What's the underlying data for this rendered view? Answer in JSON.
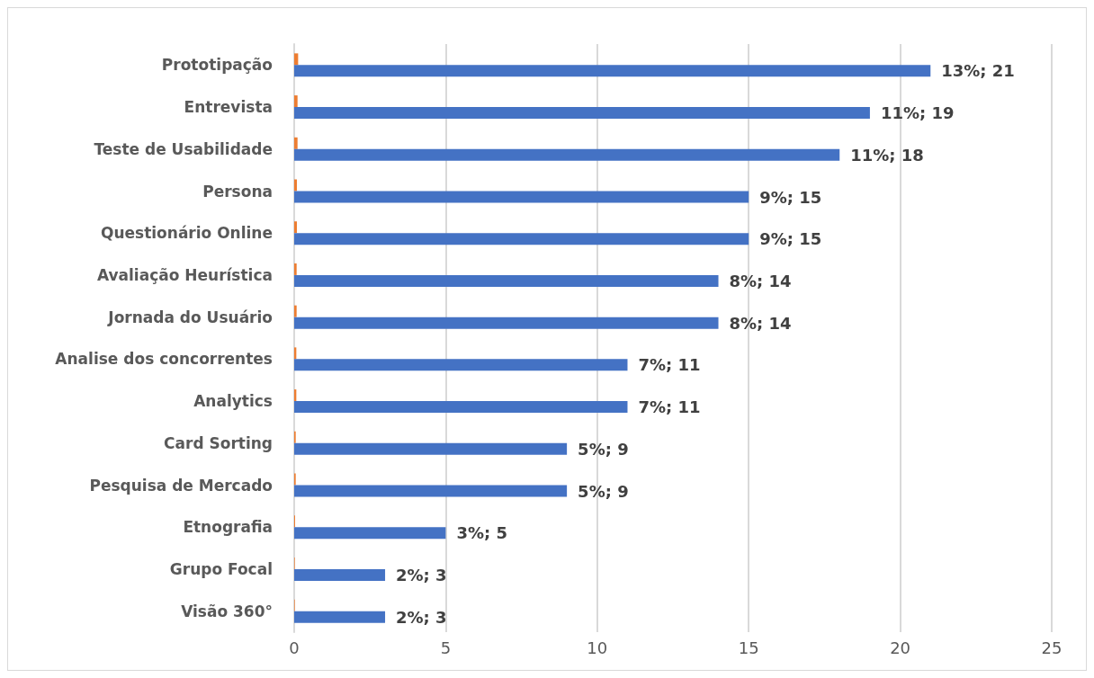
{
  "chart_data": {
    "type": "bar",
    "orientation": "horizontal",
    "categories": [
      "Prototipação",
      "Entrevista",
      "Teste de Usabilidade",
      "Persona",
      "Questionário Online",
      "Avaliação Heurística",
      "Jornada do Usuário",
      "Analise dos concorrentes",
      "Analytics",
      "Card Sorting",
      "Pesquisa de Mercado",
      "Etnografia",
      "Grupo Focal",
      "Visão 360°"
    ],
    "series": [
      {
        "color": "#4472c4",
        "values": [
          21,
          19,
          18,
          15,
          15,
          14,
          14,
          11,
          11,
          9,
          9,
          5,
          3,
          3
        ],
        "value_labels": [
          "13%; 21",
          "11%; 19",
          "11%; 18",
          "9%; 15",
          "9%; 15",
          "8%; 14",
          "8%; 14",
          "7%; 11",
          "7%; 11",
          "5%; 9",
          "5%; 9",
          "3%; 5",
          "2%; 3",
          "2%; 3"
        ]
      },
      {
        "color": "#ed7d31",
        "values": [
          0.13,
          0.11,
          0.11,
          0.09,
          0.09,
          0.08,
          0.08,
          0.07,
          0.07,
          0.05,
          0.05,
          0.03,
          0.02,
          0.02
        ]
      }
    ],
    "xlim": [
      0,
      25
    ],
    "xticks": [
      0,
      5,
      10,
      15,
      20,
      25
    ],
    "grid": "x"
  }
}
